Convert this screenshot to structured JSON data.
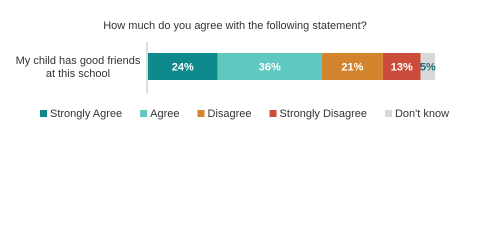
{
  "chart_data": {
    "type": "bar",
    "orientation": "horizontal",
    "stacked": true,
    "title": "How much do you agree with the following statement?",
    "categories": [
      "My child has good friends at this school"
    ],
    "xlim": [
      0,
      100
    ],
    "series": [
      {
        "name": "Strongly Agree",
        "color": "#0e8a8c",
        "values": [
          24
        ],
        "value_labels": [
          "24%"
        ],
        "label_color": "#ffffff"
      },
      {
        "name": "Agree",
        "color": "#5fc9bf",
        "values": [
          36
        ],
        "value_labels": [
          "36%"
        ],
        "label_color": "#ffffff"
      },
      {
        "name": "Disagree",
        "color": "#d4842c",
        "values": [
          21
        ],
        "value_labels": [
          "21%"
        ],
        "label_color": "#ffffff"
      },
      {
        "name": "Strongly Disagree",
        "color": "#cc4c3b",
        "values": [
          13
        ],
        "value_labels": [
          "13%"
        ],
        "label_color": "#ffffff"
      },
      {
        "name": "Don't know",
        "color": "#d9d9d9",
        "values": [
          5
        ],
        "value_labels": [
          "5%"
        ],
        "label_color": "#1f6f7a"
      }
    ],
    "legend": "bottom"
  }
}
